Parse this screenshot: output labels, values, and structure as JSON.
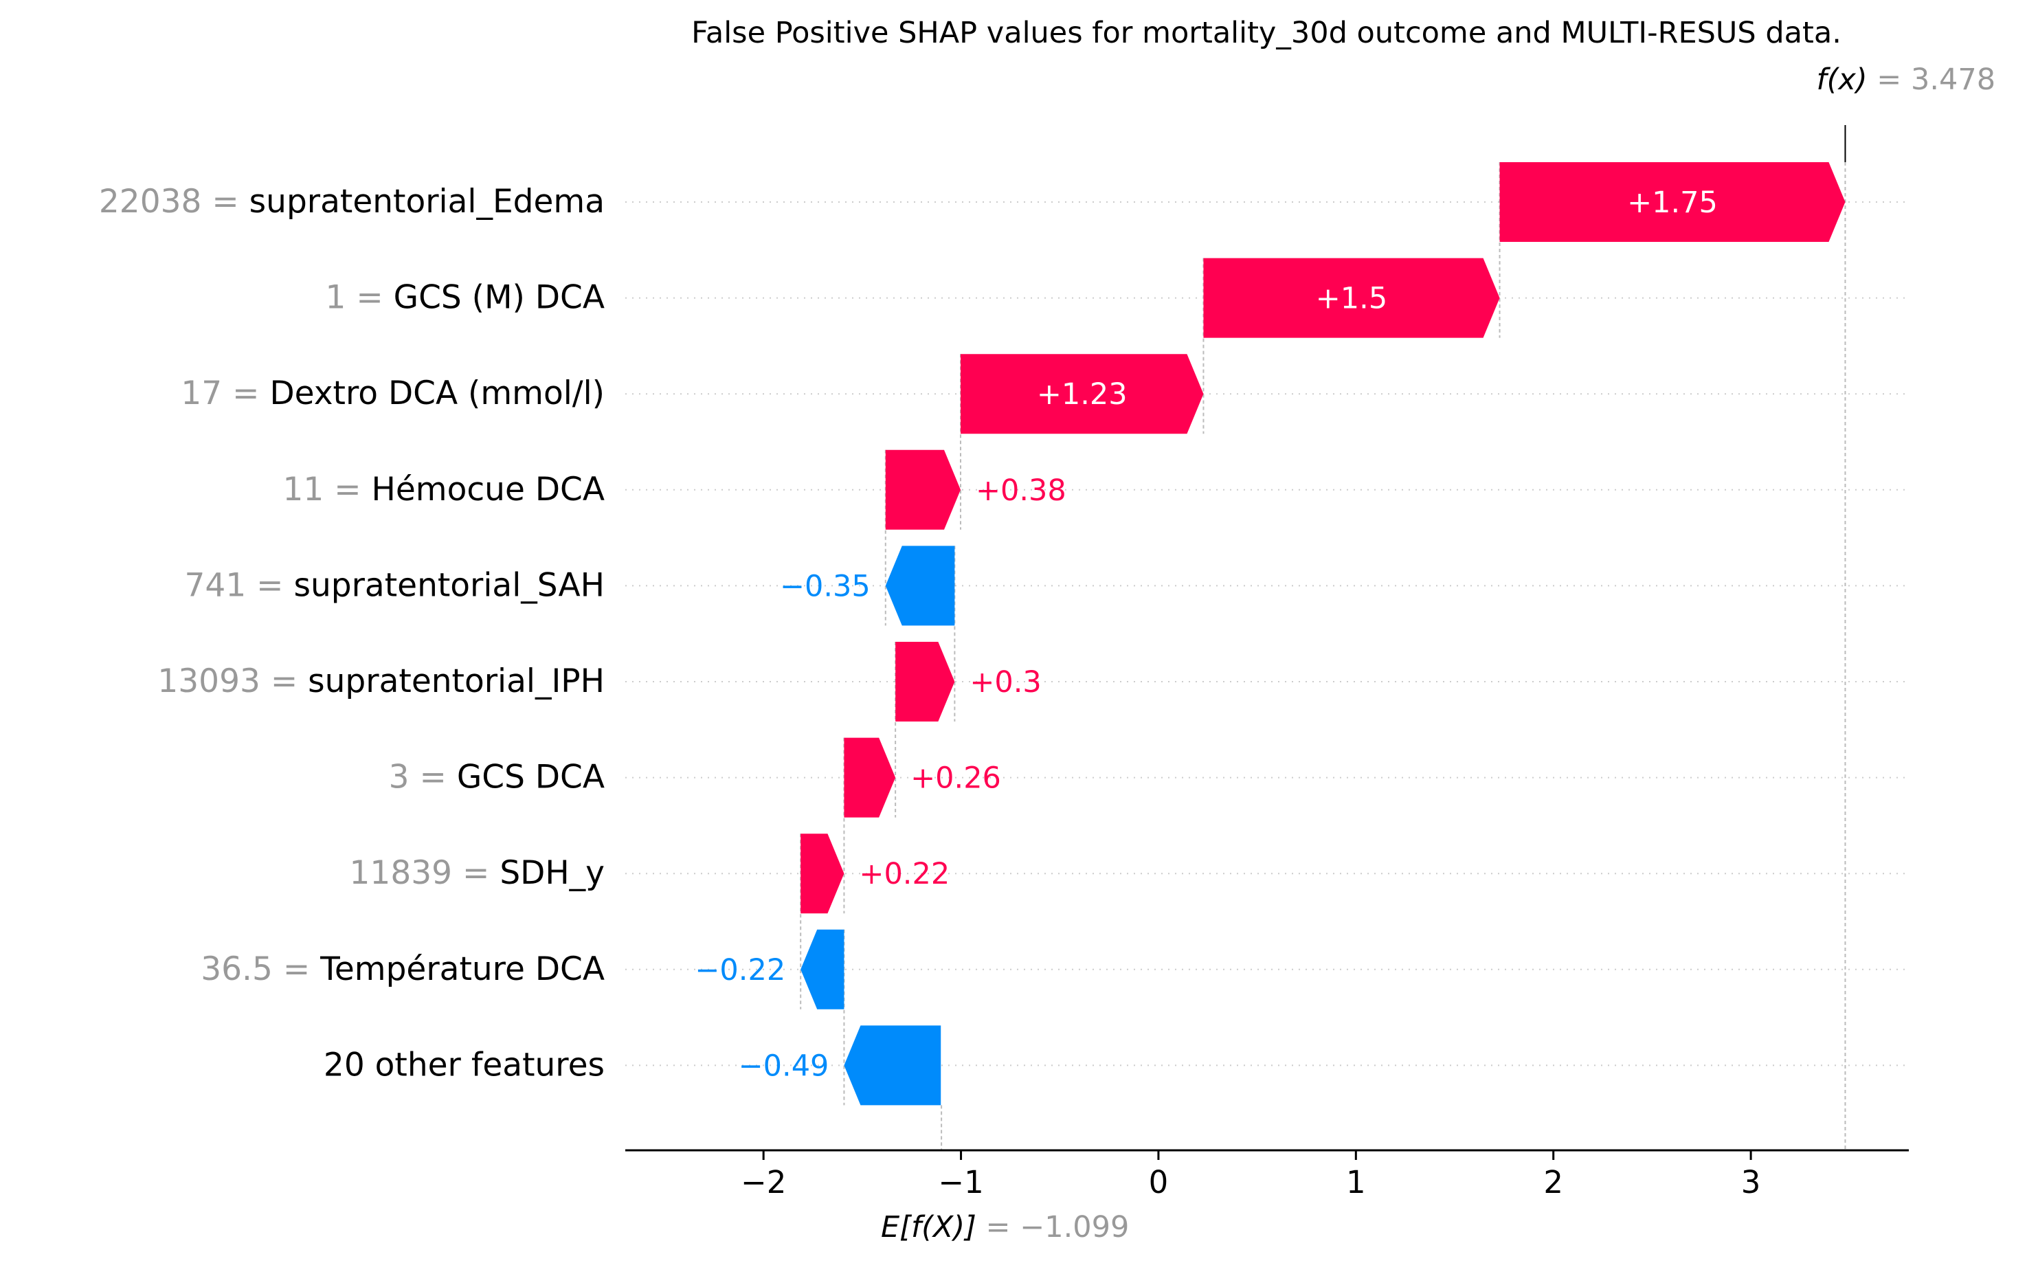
{
  "chart_data": {
    "type": "waterfall",
    "title": "False Positive SHAP values for mortality_30d outcome and MULTI-RESUS data.",
    "fx_label": "f(x)",
    "fx_value": "3.478",
    "fx_numeric": 3.478,
    "base_label": "E[f(X)]",
    "base_value": "−1.099",
    "base_numeric": -1.099,
    "xlim": [
      -2.7,
      3.8
    ],
    "xticks": [
      -2,
      -1,
      0,
      1,
      2,
      3
    ],
    "xtick_labels": [
      "−2",
      "−1",
      "0",
      "1",
      "2",
      "3"
    ],
    "features": [
      {
        "value": "22038",
        "name": "supratentorial_Edema",
        "shap": 1.75,
        "label": "+1.75",
        "label_inside": true
      },
      {
        "value": "1",
        "name": "GCS (M) DCA",
        "shap": 1.5,
        "label": "+1.5",
        "label_inside": true
      },
      {
        "value": "17",
        "name": "Dextro DCA (mmol/l)",
        "shap": 1.23,
        "label": "+1.23",
        "label_inside": true
      },
      {
        "value": "11",
        "name": "Hémocue DCA",
        "shap": 0.38,
        "label": "+0.38",
        "label_inside": false
      },
      {
        "value": "741",
        "name": "supratentorial_SAH",
        "shap": -0.35,
        "label": "−0.35",
        "label_inside": false
      },
      {
        "value": "13093",
        "name": "supratentorial_IPH",
        "shap": 0.3,
        "label": "+0.3",
        "label_inside": false
      },
      {
        "value": "3",
        "name": "GCS DCA",
        "shap": 0.26,
        "label": "+0.26",
        "label_inside": false
      },
      {
        "value": "11839",
        "name": "SDH_y",
        "shap": 0.22,
        "label": "+0.22",
        "label_inside": false
      },
      {
        "value": "36.5",
        "name": "Température DCA",
        "shap": -0.22,
        "label": "−0.22",
        "label_inside": false
      },
      {
        "value": "",
        "name": "20 other features",
        "shap": -0.49,
        "label": "−0.49",
        "label_inside": false
      }
    ],
    "colors": {
      "positive": "#ff0051",
      "negative": "#008bfb",
      "feature_value": "#999999",
      "text": "#000000",
      "grid": "#cccccc"
    }
  }
}
